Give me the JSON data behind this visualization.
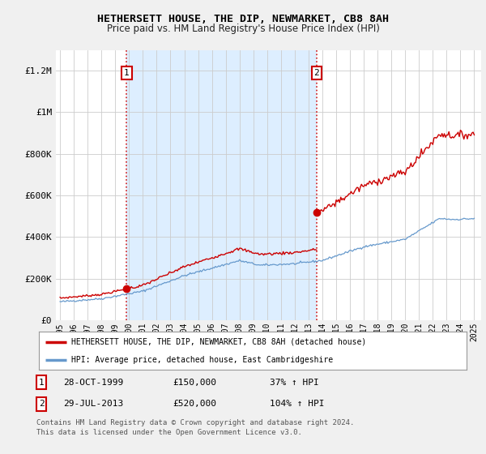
{
  "title": "HETHERSETT HOUSE, THE DIP, NEWMARKET, CB8 8AH",
  "subtitle": "Price paid vs. HM Land Registry's House Price Index (HPI)",
  "sale1_date": "28-OCT-1999",
  "sale1_price": 150000,
  "sale1_label": "37% ↑ HPI",
  "sale2_date": "29-JUL-2013",
  "sale2_price": 520000,
  "sale2_label": "104% ↑ HPI",
  "legend_line1": "HETHERSETT HOUSE, THE DIP, NEWMARKET, CB8 8AH (detached house)",
  "legend_line2": "HPI: Average price, detached house, East Cambridgeshire",
  "footnote1": "Contains HM Land Registry data © Crown copyright and database right 2024.",
  "footnote2": "This data is licensed under the Open Government Licence v3.0.",
  "red_color": "#cc0000",
  "blue_color": "#6699cc",
  "shade_color": "#ddeeff",
  "background_color": "#f0f0f0",
  "plot_bg_color": "#ffffff",
  "ylim": [
    0,
    1300000
  ],
  "yticks": [
    0,
    200000,
    400000,
    600000,
    800000,
    1000000,
    1200000
  ],
  "ytick_labels": [
    "£0",
    "£200K",
    "£400K",
    "£600K",
    "£800K",
    "£1M",
    "£1.2M"
  ],
  "xmin": 1994.7,
  "xmax": 2025.5
}
